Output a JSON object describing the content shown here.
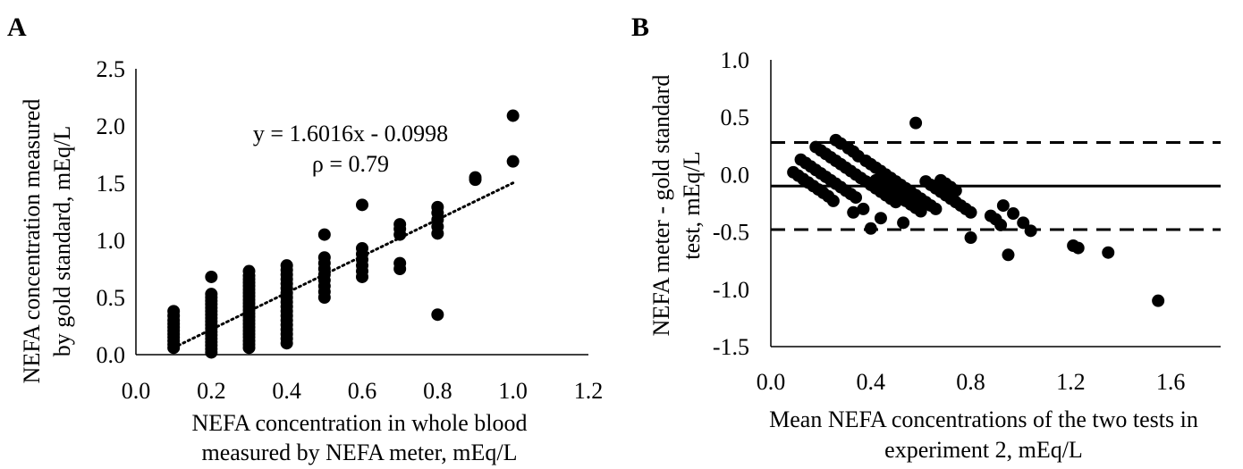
{
  "chart_data": [
    {
      "type": "scatter",
      "panel_label": "A",
      "title": "",
      "xlabel": [
        "NEFA concentration in whole blood",
        "measured by NEFA meter, mEq/L"
      ],
      "ylabel": [
        "NEFA concentration measured",
        "by gold standard, mEq/L"
      ],
      "xlim": [
        0.0,
        1.2
      ],
      "ylim": [
        0.0,
        2.5
      ],
      "x_ticks": [
        "0.0",
        "0.2",
        "0.4",
        "0.6",
        "0.8",
        "1.0",
        "1.2"
      ],
      "y_ticks": [
        "0.0",
        "0.5",
        "1.0",
        "1.5",
        "2.0",
        "2.5"
      ],
      "grid": false,
      "annotations": [
        "y = 1.6016x - 0.0998",
        "ρ = 0.79"
      ],
      "trendline": {
        "slope": 1.6016,
        "intercept": -0.0998,
        "x_range": [
          0.1,
          1.0
        ],
        "style": "dotted"
      },
      "points": [
        [
          0.1,
          0.06
        ],
        [
          0.1,
          0.09
        ],
        [
          0.1,
          0.12
        ],
        [
          0.1,
          0.15
        ],
        [
          0.1,
          0.18
        ],
        [
          0.1,
          0.21
        ],
        [
          0.1,
          0.24
        ],
        [
          0.1,
          0.27
        ],
        [
          0.1,
          0.3
        ],
        [
          0.1,
          0.34
        ],
        [
          0.1,
          0.38
        ],
        [
          0.2,
          0.02
        ],
        [
          0.2,
          0.05
        ],
        [
          0.2,
          0.08
        ],
        [
          0.2,
          0.11
        ],
        [
          0.2,
          0.14
        ],
        [
          0.2,
          0.17
        ],
        [
          0.2,
          0.2
        ],
        [
          0.2,
          0.23
        ],
        [
          0.2,
          0.26
        ],
        [
          0.2,
          0.29
        ],
        [
          0.2,
          0.32
        ],
        [
          0.2,
          0.35
        ],
        [
          0.2,
          0.38
        ],
        [
          0.2,
          0.41
        ],
        [
          0.2,
          0.44
        ],
        [
          0.2,
          0.47
        ],
        [
          0.2,
          0.5
        ],
        [
          0.2,
          0.53
        ],
        [
          0.2,
          0.68
        ],
        [
          0.3,
          0.06
        ],
        [
          0.3,
          0.09
        ],
        [
          0.3,
          0.12
        ],
        [
          0.3,
          0.15
        ],
        [
          0.3,
          0.18
        ],
        [
          0.3,
          0.21
        ],
        [
          0.3,
          0.24
        ],
        [
          0.3,
          0.27
        ],
        [
          0.3,
          0.3
        ],
        [
          0.3,
          0.33
        ],
        [
          0.3,
          0.36
        ],
        [
          0.3,
          0.39
        ],
        [
          0.3,
          0.42
        ],
        [
          0.3,
          0.45
        ],
        [
          0.3,
          0.48
        ],
        [
          0.3,
          0.51
        ],
        [
          0.3,
          0.54
        ],
        [
          0.3,
          0.57
        ],
        [
          0.3,
          0.6
        ],
        [
          0.3,
          0.63
        ],
        [
          0.3,
          0.66
        ],
        [
          0.3,
          0.69
        ],
        [
          0.3,
          0.73
        ],
        [
          0.4,
          0.1
        ],
        [
          0.4,
          0.14
        ],
        [
          0.4,
          0.18
        ],
        [
          0.4,
          0.22
        ],
        [
          0.4,
          0.26
        ],
        [
          0.4,
          0.3
        ],
        [
          0.4,
          0.34
        ],
        [
          0.4,
          0.38
        ],
        [
          0.4,
          0.42
        ],
        [
          0.4,
          0.46
        ],
        [
          0.4,
          0.5
        ],
        [
          0.4,
          0.54
        ],
        [
          0.4,
          0.58
        ],
        [
          0.4,
          0.62
        ],
        [
          0.4,
          0.66
        ],
        [
          0.4,
          0.7
        ],
        [
          0.4,
          0.74
        ],
        [
          0.4,
          0.78
        ],
        [
          0.5,
          0.5
        ],
        [
          0.5,
          0.55
        ],
        [
          0.5,
          0.6
        ],
        [
          0.5,
          0.65
        ],
        [
          0.5,
          0.7
        ],
        [
          0.5,
          0.75
        ],
        [
          0.5,
          0.8
        ],
        [
          0.5,
          0.85
        ],
        [
          0.5,
          1.05
        ],
        [
          0.6,
          0.68
        ],
        [
          0.6,
          0.73
        ],
        [
          0.6,
          0.78
        ],
        [
          0.6,
          0.83
        ],
        [
          0.6,
          0.88
        ],
        [
          0.6,
          0.93
        ],
        [
          0.6,
          1.31
        ],
        [
          0.7,
          0.75
        ],
        [
          0.7,
          0.8
        ],
        [
          0.7,
          1.05
        ],
        [
          0.7,
          1.1
        ],
        [
          0.7,
          1.14
        ],
        [
          0.8,
          0.35
        ],
        [
          0.8,
          1.06
        ],
        [
          0.8,
          1.12
        ],
        [
          0.8,
          1.18
        ],
        [
          0.8,
          1.24
        ],
        [
          0.8,
          1.29
        ],
        [
          0.9,
          1.53
        ],
        [
          0.9,
          1.55
        ],
        [
          1.0,
          1.69
        ],
        [
          1.0,
          2.09
        ]
      ]
    },
    {
      "type": "scatter",
      "panel_label": "B",
      "title": "",
      "xlabel": [
        "Mean NEFA concentrations of the two tests in",
        "experiment 2, mEq/L"
      ],
      "ylabel": [
        "NEFA meter - gold standard",
        "test, mEq/L"
      ],
      "xlim": [
        0.0,
        1.8
      ],
      "ylim": [
        -1.5,
        1.0
      ],
      "x_ticks": [
        "0.0",
        "0.4",
        "0.8",
        "1.2",
        "1.6"
      ],
      "y_ticks": [
        "-1.5",
        "-1.0",
        "-0.5",
        "0.0",
        "0.5",
        "1.0"
      ],
      "grid": false,
      "mean_line": -0.1,
      "limits_of_agreement": [
        0.28,
        -0.48
      ],
      "points": [
        [
          0.09,
          0.02
        ],
        [
          0.11,
          -0.01
        ],
        [
          0.13,
          -0.04
        ],
        [
          0.15,
          -0.07
        ],
        [
          0.17,
          -0.1
        ],
        [
          0.19,
          -0.13
        ],
        [
          0.21,
          -0.16
        ],
        [
          0.23,
          -0.19
        ],
        [
          0.25,
          -0.23
        ],
        [
          0.12,
          0.13
        ],
        [
          0.14,
          0.1
        ],
        [
          0.16,
          0.07
        ],
        [
          0.18,
          0.04
        ],
        [
          0.2,
          0.01
        ],
        [
          0.22,
          -0.02
        ],
        [
          0.24,
          -0.05
        ],
        [
          0.26,
          -0.08
        ],
        [
          0.28,
          -0.11
        ],
        [
          0.3,
          -0.14
        ],
        [
          0.32,
          -0.17
        ],
        [
          0.34,
          -0.2
        ],
        [
          0.18,
          0.24
        ],
        [
          0.2,
          0.21
        ],
        [
          0.22,
          0.18
        ],
        [
          0.24,
          0.15
        ],
        [
          0.26,
          0.12
        ],
        [
          0.28,
          0.09
        ],
        [
          0.3,
          0.06
        ],
        [
          0.32,
          0.03
        ],
        [
          0.34,
          0.0
        ],
        [
          0.36,
          -0.03
        ],
        [
          0.38,
          -0.06
        ],
        [
          0.4,
          -0.09
        ],
        [
          0.42,
          -0.12
        ],
        [
          0.44,
          -0.15
        ],
        [
          0.46,
          -0.18
        ],
        [
          0.48,
          -0.21
        ],
        [
          0.5,
          -0.24
        ],
        [
          0.26,
          0.3
        ],
        [
          0.28,
          0.27
        ],
        [
          0.31,
          0.23
        ],
        [
          0.33,
          0.2
        ],
        [
          0.35,
          0.16
        ],
        [
          0.38,
          0.12
        ],
        [
          0.4,
          0.09
        ],
        [
          0.42,
          0.06
        ],
        [
          0.44,
          0.03
        ],
        [
          0.46,
          0.0
        ],
        [
          0.48,
          -0.03
        ],
        [
          0.5,
          -0.06
        ],
        [
          0.52,
          -0.09
        ],
        [
          0.54,
          -0.12
        ],
        [
          0.56,
          -0.15
        ],
        [
          0.58,
          -0.18
        ],
        [
          0.6,
          -0.21
        ],
        [
          0.62,
          -0.24
        ],
        [
          0.64,
          -0.27
        ],
        [
          0.66,
          -0.3
        ],
        [
          0.42,
          -0.05
        ],
        [
          0.44,
          -0.08
        ],
        [
          0.46,
          -0.11
        ],
        [
          0.48,
          -0.14
        ],
        [
          0.5,
          -0.17
        ],
        [
          0.52,
          -0.2
        ],
        [
          0.54,
          -0.23
        ],
        [
          0.56,
          -0.26
        ],
        [
          0.58,
          -0.29
        ],
        [
          0.6,
          -0.32
        ],
        [
          0.62,
          -0.06
        ],
        [
          0.64,
          -0.09
        ],
        [
          0.66,
          -0.12
        ],
        [
          0.68,
          -0.15
        ],
        [
          0.7,
          -0.18
        ],
        [
          0.72,
          -0.21
        ],
        [
          0.74,
          -0.24
        ],
        [
          0.76,
          -0.27
        ],
        [
          0.78,
          -0.3
        ],
        [
          0.8,
          -0.33
        ],
        [
          0.68,
          -0.05
        ],
        [
          0.7,
          -0.08
        ],
        [
          0.72,
          -0.11
        ],
        [
          0.74,
          -0.14
        ],
        [
          0.33,
          -0.33
        ],
        [
          0.37,
          -0.3
        ],
        [
          0.4,
          -0.47
        ],
        [
          0.44,
          -0.38
        ],
        [
          0.53,
          -0.42
        ],
        [
          0.58,
          0.45
        ],
        [
          0.8,
          -0.55
        ],
        [
          0.88,
          -0.36
        ],
        [
          0.9,
          -0.39
        ],
        [
          0.92,
          -0.44
        ],
        [
          0.93,
          -0.27
        ],
        [
          0.95,
          -0.7
        ],
        [
          0.97,
          -0.34
        ],
        [
          1.01,
          -0.42
        ],
        [
          1.04,
          -0.49
        ],
        [
          1.21,
          -0.62
        ],
        [
          1.23,
          -0.64
        ],
        [
          1.35,
          -0.68
        ],
        [
          1.55,
          -1.1
        ]
      ]
    }
  ]
}
